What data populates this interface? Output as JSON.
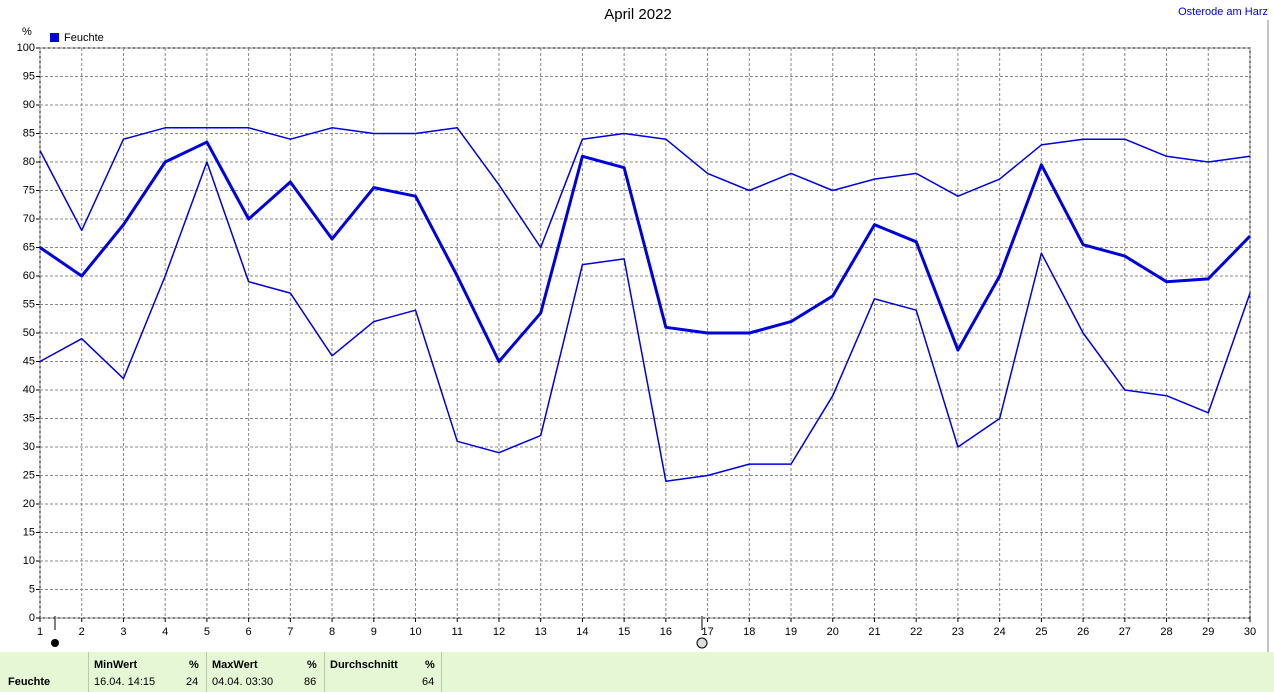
{
  "chart_data": {
    "type": "line",
    "title": "April 2022",
    "station": "Osterode am Harz",
    "y_label": "%",
    "legend": "Feuchte",
    "legend_color": "#0000dd",
    "x": [
      1,
      2,
      3,
      4,
      5,
      6,
      7,
      8,
      9,
      10,
      11,
      12,
      13,
      14,
      15,
      16,
      17,
      18,
      19,
      20,
      21,
      22,
      23,
      24,
      25,
      26,
      27,
      28,
      29,
      30
    ],
    "xlim": [
      1,
      30
    ],
    "xticks": [
      1,
      2,
      3,
      4,
      5,
      6,
      7,
      8,
      9,
      10,
      11,
      12,
      13,
      14,
      15,
      16,
      17,
      18,
      19,
      20,
      21,
      22,
      23,
      24,
      25,
      26,
      27,
      28,
      29,
      30
    ],
    "ylim": [
      0,
      100
    ],
    "yticks": [
      0,
      5,
      10,
      15,
      20,
      25,
      30,
      35,
      40,
      45,
      50,
      55,
      60,
      65,
      70,
      75,
      80,
      85,
      90,
      95,
      100
    ],
    "grid": true,
    "series": [
      {
        "color": "#0000dd",
        "values": [
          82,
          68,
          84,
          86,
          86,
          86,
          84,
          86,
          85,
          85,
          86,
          76,
          65,
          84,
          85,
          84,
          78,
          75,
          78,
          75,
          77,
          78,
          74,
          77,
          83,
          84,
          84,
          81,
          80,
          81
        ]
      },
      {
        "color": "#0000dd",
        "values": [
          65,
          60,
          69,
          80,
          83.5,
          70,
          76.5,
          66.5,
          75.5,
          74,
          60,
          45,
          53.5,
          81,
          79,
          51,
          50,
          50,
          52,
          56.5,
          69,
          66,
          47,
          60,
          79.5,
          65.5,
          63.5,
          59,
          59.5,
          67
        ]
      },
      {
        "color": "#0000dd",
        "values": [
          45,
          49,
          42,
          60,
          80,
          59,
          57,
          46,
          52,
          54,
          31,
          29,
          32,
          62,
          63,
          24,
          25,
          27,
          27,
          39,
          56,
          54,
          30,
          35,
          64,
          50,
          40,
          39,
          36,
          57
        ]
      }
    ]
  },
  "summary": {
    "row_label": "Feuchte",
    "columns": [
      {
        "header": "MinWert",
        "unit": "%",
        "time": "16.04.  14:15",
        "value": "24"
      },
      {
        "header": "MaxWert",
        "unit": "%",
        "time": "04.04.  03:30",
        "value": "86"
      },
      {
        "header": "Durchschnitt",
        "unit": "%",
        "value": "64"
      }
    ]
  }
}
